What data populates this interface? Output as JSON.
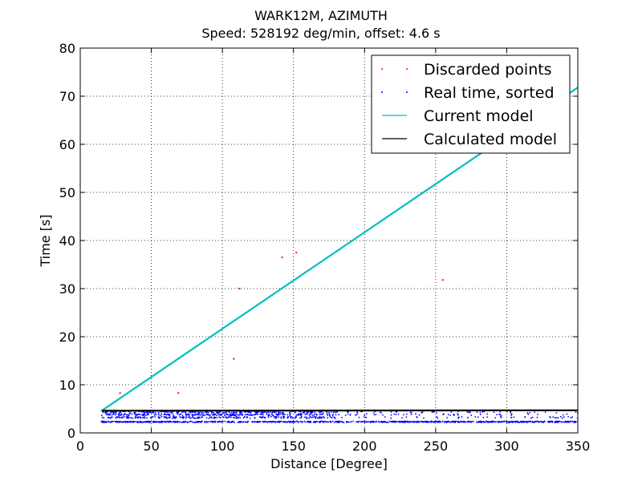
{
  "chart_data": {
    "type": "scatter",
    "title": "WARK12M, AZIMUTH",
    "subtitle": "Speed: 528192 deg/min, offset: 4.6 s",
    "xlabel": "Distance [Degree]",
    "ylabel": "Time [s]",
    "xlim": [
      0,
      350
    ],
    "ylim": [
      0,
      80
    ],
    "xticks": [
      0,
      50,
      100,
      150,
      200,
      250,
      300,
      350
    ],
    "yticks": [
      0,
      10,
      20,
      30,
      40,
      50,
      60,
      70,
      80
    ],
    "grid": true,
    "legend_position": "top-right",
    "series": [
      {
        "name": "Discarded points",
        "kind": "points",
        "color": "#ff0000",
        "x": [
          28,
          69,
          108,
          112,
          142,
          152,
          255
        ],
        "y": [
          8.3,
          8.3,
          15.4,
          30,
          36.5,
          37.5,
          31.8
        ]
      },
      {
        "name": "Real time, sorted",
        "kind": "points",
        "color": "#0000ff",
        "x_range": [
          15,
          350
        ],
        "y_bands": [
          2.3,
          3.2,
          3.8,
          4.3
        ]
      },
      {
        "name": "Current model",
        "kind": "line",
        "color": "#00bfbf",
        "x": [
          15,
          350
        ],
        "y": [
          4.6,
          71.8
        ]
      },
      {
        "name": "Calculated model",
        "kind": "line",
        "color": "#000000",
        "x": [
          15,
          350
        ],
        "y": [
          4.6,
          4.7
        ]
      }
    ]
  }
}
